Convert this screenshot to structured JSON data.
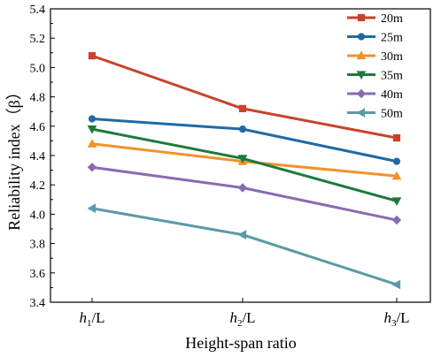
{
  "chart_data": {
    "type": "line",
    "categories": [
      {
        "base": "h",
        "sub": "1",
        "suffix": "/L"
      },
      {
        "base": "h",
        "sub": "2",
        "suffix": "/L"
      },
      {
        "base": "h",
        "sub": "3",
        "suffix": "/L"
      }
    ],
    "xlabel": "Height-span ratio",
    "ylabel": "Reliability index（β）",
    "ylim": [
      3.4,
      5.4
    ],
    "yticks": [
      "3.4",
      "3.6",
      "3.8",
      "4.0",
      "4.2",
      "4.4",
      "4.6",
      "4.8",
      "5.0",
      "5.2",
      "5.4"
    ],
    "grid": false,
    "legend_position": "top-right",
    "series": [
      {
        "name": "20m",
        "values": [
          5.08,
          4.72,
          4.52
        ],
        "color": "#c8432b",
        "marker": "square"
      },
      {
        "name": "25m",
        "values": [
          4.65,
          4.58,
          4.36
        ],
        "color": "#1f6aa5",
        "marker": "circle"
      },
      {
        "name": "30m",
        "values": [
          4.48,
          4.36,
          4.26
        ],
        "color": "#f0932b",
        "marker": "triangle-up"
      },
      {
        "name": "35m",
        "values": [
          4.58,
          4.38,
          4.09
        ],
        "color": "#1c7a3c",
        "marker": "triangle-down"
      },
      {
        "name": "40m",
        "values": [
          4.32,
          4.18,
          3.96
        ],
        "color": "#8a6bb3",
        "marker": "diamond"
      },
      {
        "name": "50m",
        "values": [
          4.04,
          3.86,
          3.52
        ],
        "color": "#5b9aa8",
        "marker": "triangle-left"
      }
    ]
  }
}
